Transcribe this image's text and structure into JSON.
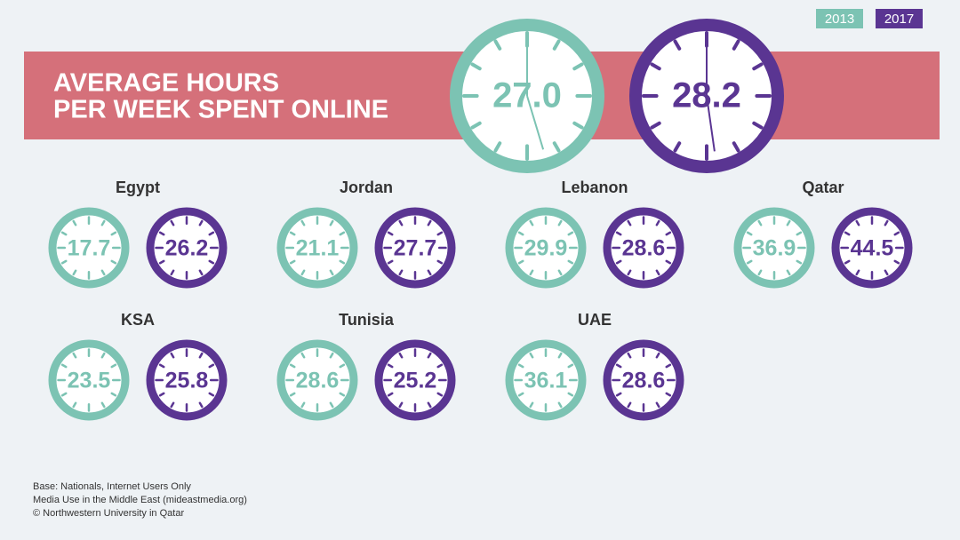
{
  "legend": [
    {
      "label": "2013",
      "color": "#7cc3b3"
    },
    {
      "label": "2017",
      "color": "#5a3592"
    }
  ],
  "header": {
    "title_lines": [
      "AVERAGE HOURS",
      "PER WEEK SPENT ONLINE"
    ],
    "overall": [
      "27.0",
      "28.2"
    ]
  },
  "countries": [
    {
      "name": "Egypt",
      "values": [
        "17.7",
        "26.2"
      ]
    },
    {
      "name": "Jordan",
      "values": [
        "21.1",
        "27.7"
      ]
    },
    {
      "name": "Lebanon",
      "values": [
        "29.9",
        "28.6"
      ]
    },
    {
      "name": "Qatar",
      "values": [
        "36.9",
        "44.5"
      ]
    },
    {
      "name": "KSA",
      "values": [
        "23.5",
        "25.8"
      ]
    },
    {
      "name": "Tunisia",
      "values": [
        "28.6",
        "25.2"
      ]
    },
    {
      "name": "UAE",
      "values": [
        "36.1",
        "28.6"
      ]
    }
  ],
  "footnotes": [
    "Base: Nationals, Internet Users Only",
    "Media Use in the Middle East (mideastmedia.org)",
    "© Northwestern University in Qatar"
  ]
}
